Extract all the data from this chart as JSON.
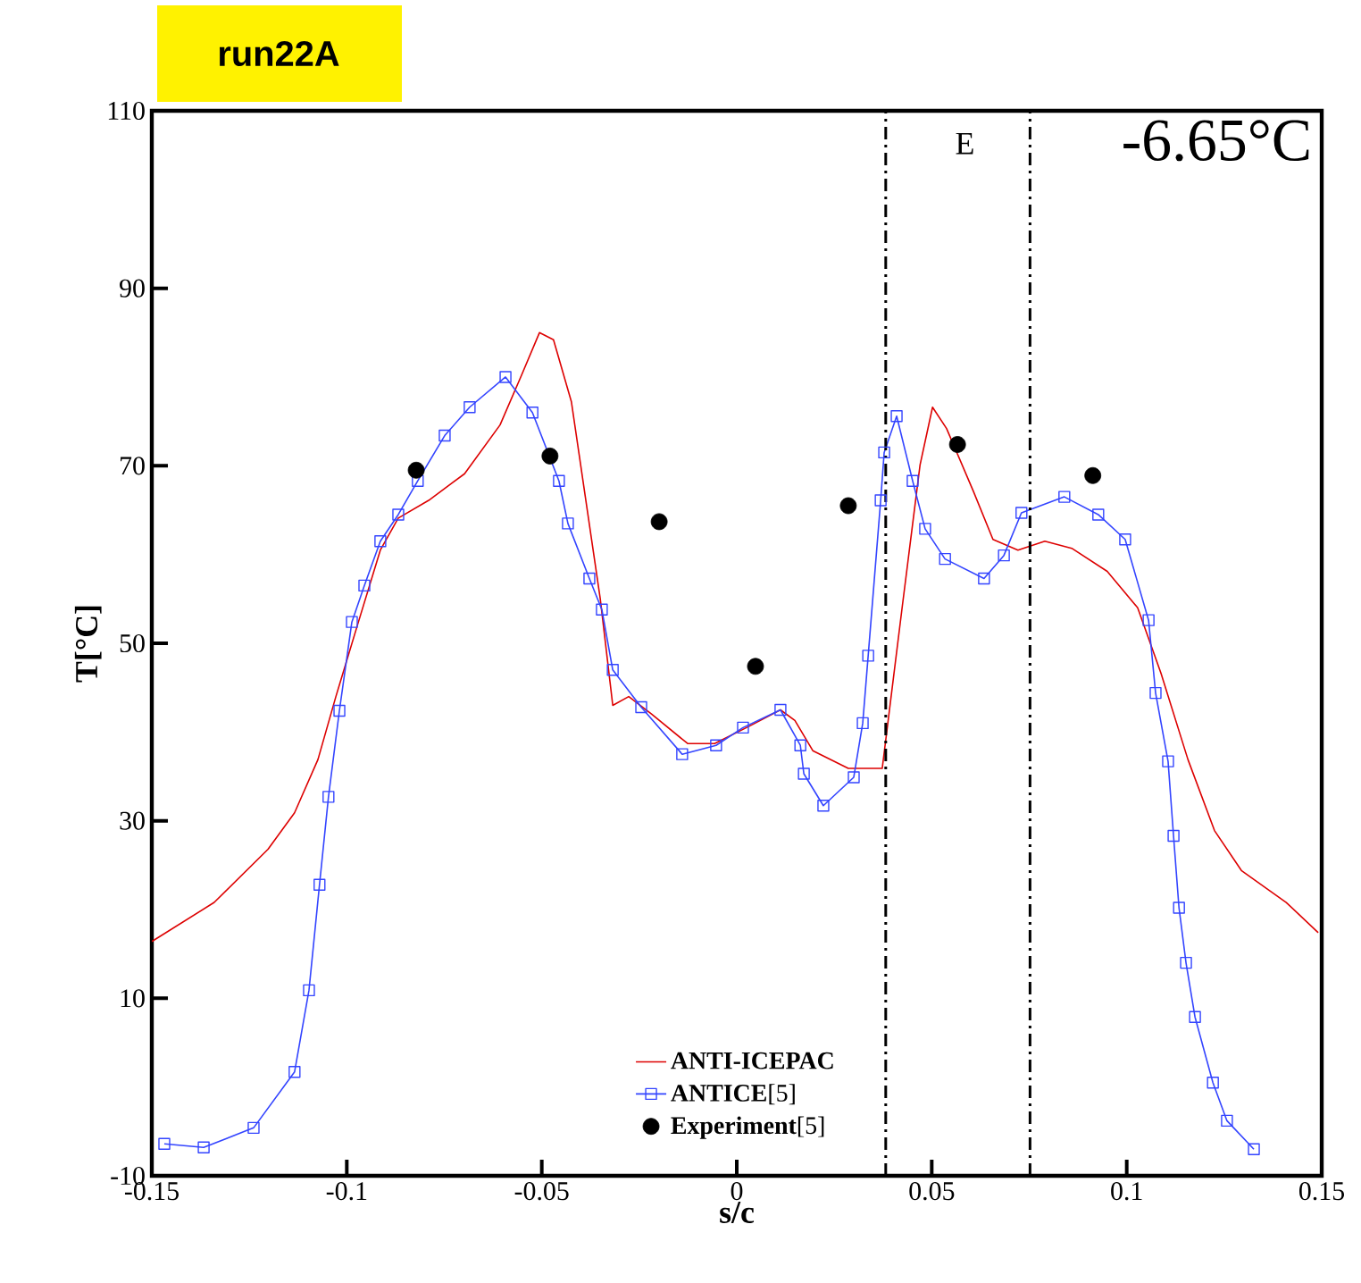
{
  "chart_data": {
    "type": "line",
    "title": "run22A",
    "xlabel": "s/c",
    "ylabel": "T[°C]",
    "xlim": [
      -0.15,
      0.15
    ],
    "ylim": [
      -10,
      110
    ],
    "xticks": [
      -0.15,
      -0.1,
      -0.05,
      0,
      0.05,
      0.1,
      0.15
    ],
    "yticks": [
      -10,
      10,
      30,
      50,
      70,
      90,
      110
    ],
    "grid": false,
    "legend": "bottom",
    "ref_lines": [
      {
        "axis": "x",
        "value": 0.0382,
        "line_style": "dashdot"
      },
      {
        "axis": "x",
        "value": 0.0752,
        "line_style": "dashdot"
      }
    ],
    "annotations": [
      "E",
      "-6.65°C"
    ],
    "series": [
      {
        "name": "**ANTI-ICEPAC**",
        "color": "#dd0000",
        "marker": "none",
        "x": [
          -0.15,
          -0.134,
          -0.1202,
          -0.1134,
          -0.1074,
          -0.1028,
          -0.0973,
          -0.0914,
          -0.0868,
          -0.079,
          -0.0698,
          -0.0607,
          -0.0552,
          -0.0506,
          -0.047,
          -0.0424,
          -0.0387,
          -0.035,
          -0.0318,
          -0.0277,
          -0.0218,
          -0.0126,
          -0.0057,
          0.0034,
          0.0112,
          0.0149,
          0.0195,
          0.0286,
          0.0373,
          0.0424,
          0.047,
          0.0502,
          0.0538,
          0.0607,
          0.0657,
          0.0721,
          0.079,
          0.0859,
          0.095,
          0.1028,
          0.1088,
          0.1157,
          0.1225,
          0.1294,
          0.1409,
          0.1491
        ],
        "values": [
          16.4,
          20.8,
          26.8,
          30.9,
          36.9,
          44,
          52,
          60.5,
          64.1,
          66.1,
          69.1,
          74.6,
          80.2,
          85.0,
          84.2,
          77.2,
          66.1,
          55,
          43,
          44,
          42,
          38.7,
          38.7,
          40.7,
          42.5,
          41.3,
          37.9,
          35.9,
          35.9,
          54,
          70.1,
          76.6,
          74.2,
          67.1,
          61.7,
          60.5,
          61.5,
          60.7,
          58.1,
          54,
          46.6,
          36.9,
          28.9,
          24.4,
          20.8,
          17.4
        ]
      },
      {
        "name": "**ANTICE**[5]",
        "color": "#3344ff",
        "marker": "square",
        "x": [
          -0.1468,
          -0.1367,
          -0.1239,
          -0.1134,
          -0.1097,
          -0.107,
          -0.1047,
          -0.1019,
          -0.0987,
          -0.0955,
          -0.0914,
          -0.0868,
          -0.0818,
          -0.0749,
          -0.0685,
          -0.0593,
          -0.0524,
          -0.0456,
          -0.0433,
          -0.0378,
          -0.0346,
          -0.0318,
          -0.0245,
          -0.014,
          -0.0053,
          0.0016,
          0.0112,
          0.0163,
          0.0172,
          0.0222,
          0.03,
          0.0323,
          0.0337,
          0.0369,
          0.0378,
          0.041,
          0.0451,
          0.0483,
          0.0534,
          0.0634,
          0.0685,
          0.073,
          0.084,
          0.0927,
          0.0996,
          0.1056,
          0.1074,
          0.1106,
          0.112,
          0.1134,
          0.1152,
          0.1175,
          0.1221,
          0.1257,
          0.1326
        ],
        "values": [
          -6.4,
          -6.8,
          -4.6,
          1.7,
          10.9,
          22.8,
          32.7,
          42.4,
          52.4,
          56.5,
          61.5,
          64.5,
          68.3,
          73.4,
          76.6,
          80.0,
          76.0,
          68.3,
          63.5,
          57.3,
          53.8,
          47.0,
          42.8,
          37.5,
          38.5,
          40.5,
          42.5,
          38.5,
          35.3,
          31.7,
          34.9,
          41,
          48.6,
          66.1,
          71.5,
          75.6,
          68.3,
          62.9,
          59.5,
          57.3,
          59.9,
          64.7,
          66.5,
          64.5,
          61.7,
          52.6,
          44.4,
          36.7,
          28.3,
          20.2,
          14.0,
          7.9,
          0.5,
          -3.8,
          -7.0
        ]
      },
      {
        "name": "**Experiment**[5]",
        "type": "scatter",
        "color": "#000000",
        "marker": "circle",
        "x": [
          -0.0822,
          -0.0479,
          -0.0199,
          0.0048,
          0.0286,
          0.0566,
          0.0913
        ],
        "values": [
          69.5,
          71.1,
          63.7,
          47.4,
          65.5,
          72.4,
          68.9
        ]
      }
    ]
  }
}
